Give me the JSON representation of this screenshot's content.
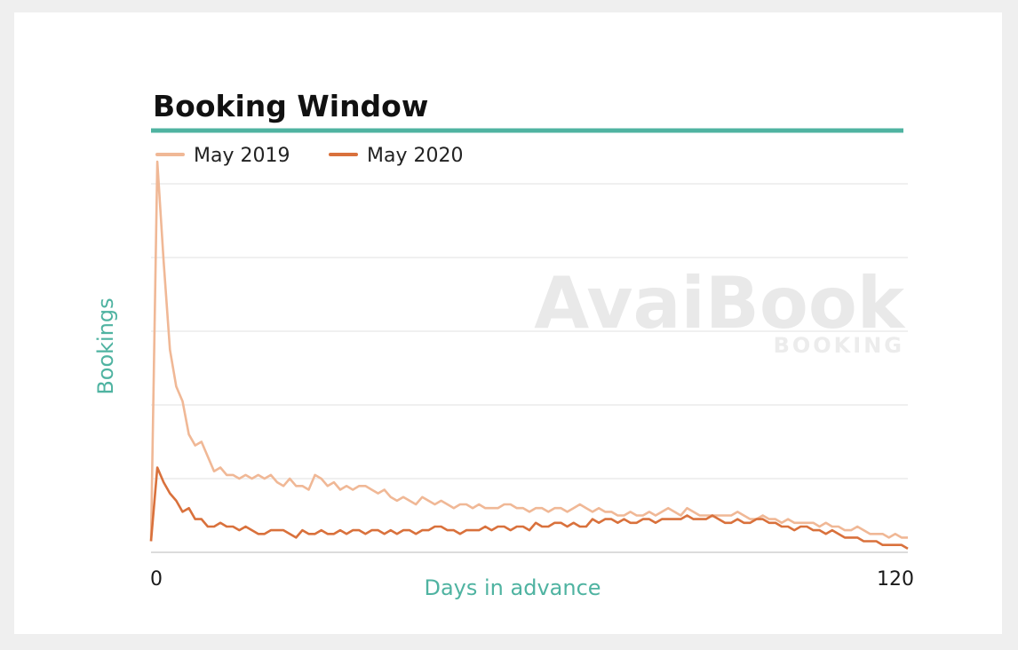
{
  "chart_data": {
    "type": "line",
    "title": "Booking Window",
    "xlabel": "Days in advance",
    "ylabel": "Bookings",
    "xlim": [
      0,
      120
    ],
    "ylim": [
      0,
      100
    ],
    "x_ticks": [
      "0",
      "120"
    ],
    "grid": "horizontal",
    "legend_position": "top-left",
    "watermark": {
      "main": "AvaiBook",
      "sub": "BOOKING"
    },
    "x": [
      0,
      1,
      2,
      3,
      4,
      5,
      6,
      7,
      8,
      9,
      10,
      11,
      12,
      13,
      14,
      15,
      16,
      17,
      18,
      19,
      20,
      21,
      22,
      23,
      24,
      25,
      26,
      27,
      28,
      29,
      30,
      31,
      32,
      33,
      34,
      35,
      36,
      37,
      38,
      39,
      40,
      41,
      42,
      43,
      44,
      45,
      46,
      47,
      48,
      49,
      50,
      51,
      52,
      53,
      54,
      55,
      56,
      57,
      58,
      59,
      60,
      61,
      62,
      63,
      64,
      65,
      66,
      67,
      68,
      69,
      70,
      71,
      72,
      73,
      74,
      75,
      76,
      77,
      78,
      79,
      80,
      81,
      82,
      83,
      84,
      85,
      86,
      87,
      88,
      89,
      90,
      91,
      92,
      93,
      94,
      95,
      96,
      97,
      98,
      99,
      100,
      101,
      102,
      103,
      104,
      105,
      106,
      107,
      108,
      109,
      110,
      111,
      112,
      113,
      114,
      115,
      116,
      117,
      118,
      119,
      120
    ],
    "series": [
      {
        "name": "May 2019",
        "color": "#f0b896",
        "values": [
          3,
          106,
          79,
          55,
          45,
          41,
          32,
          29,
          30,
          26,
          22,
          23,
          21,
          21,
          20,
          21,
          20,
          21,
          20,
          21,
          19,
          18,
          20,
          18,
          18,
          17,
          21,
          20,
          18,
          19,
          17,
          18,
          17,
          18,
          18,
          17,
          16,
          17,
          15,
          14,
          15,
          14,
          13,
          15,
          14,
          13,
          14,
          13,
          12,
          13,
          13,
          12,
          13,
          12,
          12,
          12,
          13,
          13,
          12,
          12,
          11,
          12,
          12,
          11,
          12,
          12,
          11,
          12,
          13,
          12,
          11,
          12,
          11,
          11,
          10,
          10,
          11,
          10,
          10,
          11,
          10,
          11,
          12,
          11,
          10,
          12,
          11,
          10,
          10,
          10,
          10,
          10,
          10,
          11,
          10,
          9,
          9,
          10,
          9,
          9,
          8,
          9,
          8,
          8,
          8,
          8,
          7,
          8,
          7,
          7,
          6,
          6,
          7,
          6,
          5,
          5,
          5,
          4,
          5,
          4,
          4
        ]
      },
      {
        "name": "May 2020",
        "color": "#d9713c",
        "values": [
          3,
          23,
          19,
          16,
          14,
          11,
          12,
          9,
          9,
          7,
          7,
          8,
          7,
          7,
          6,
          7,
          6,
          5,
          5,
          6,
          6,
          6,
          5,
          4,
          6,
          5,
          5,
          6,
          5,
          5,
          6,
          5,
          6,
          6,
          5,
          6,
          6,
          5,
          6,
          5,
          6,
          6,
          5,
          6,
          6,
          7,
          7,
          6,
          6,
          5,
          6,
          6,
          6,
          7,
          6,
          7,
          7,
          6,
          7,
          7,
          6,
          8,
          7,
          7,
          8,
          8,
          7,
          8,
          7,
          7,
          9,
          8,
          9,
          9,
          8,
          9,
          8,
          8,
          9,
          9,
          8,
          9,
          9,
          9,
          9,
          10,
          9,
          9,
          9,
          10,
          9,
          8,
          8,
          9,
          8,
          8,
          9,
          9,
          8,
          8,
          7,
          7,
          6,
          7,
          7,
          6,
          6,
          5,
          6,
          5,
          4,
          4,
          4,
          3,
          3,
          3,
          2,
          2,
          2,
          2,
          1
        ]
      }
    ]
  }
}
